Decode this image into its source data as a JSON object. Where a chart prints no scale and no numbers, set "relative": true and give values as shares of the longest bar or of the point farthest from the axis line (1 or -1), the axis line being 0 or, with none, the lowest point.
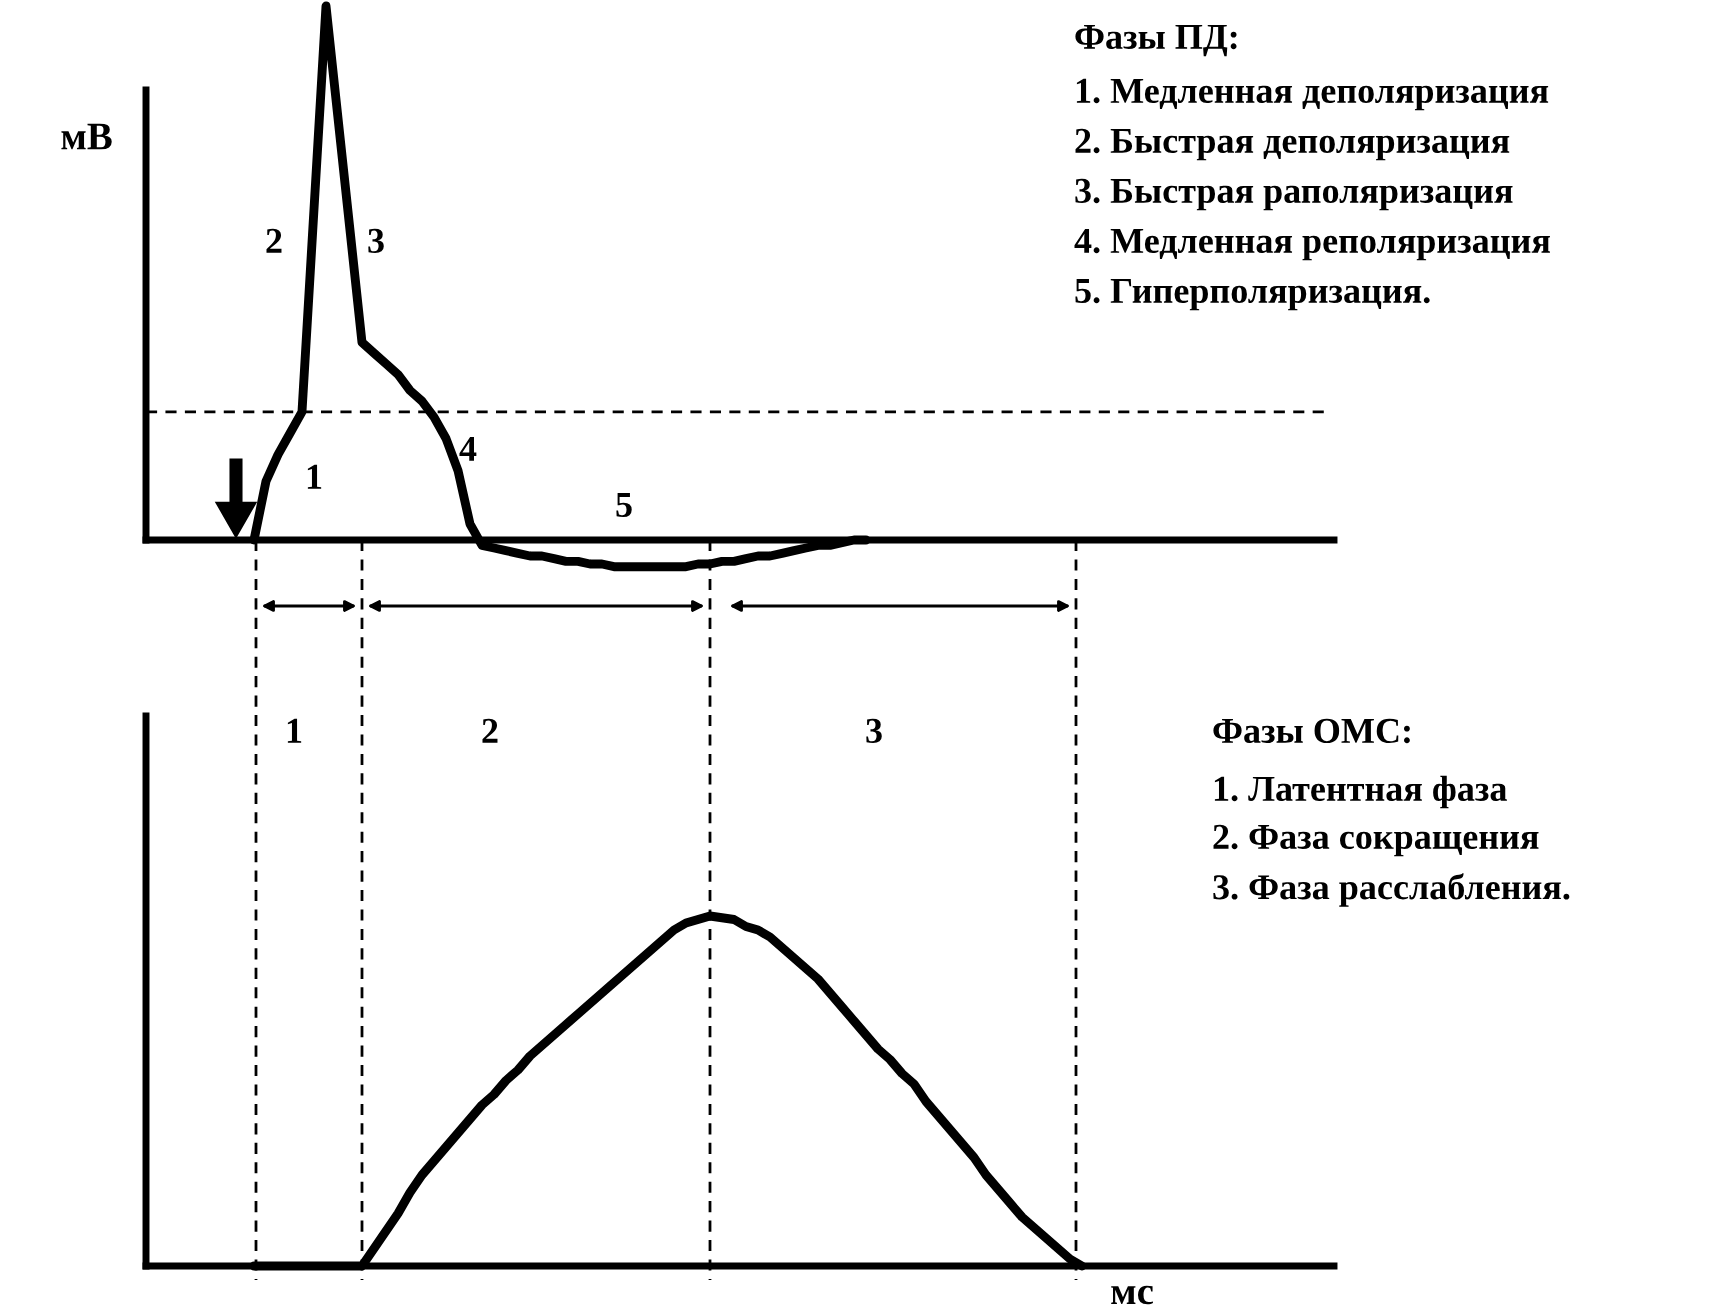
{
  "chart_data": [
    {
      "type": "line",
      "ylabel": "мВ",
      "relative": true,
      "categories": [
        null,
        null,
        null,
        null,
        null,
        null,
        null,
        null,
        null,
        null,
        null,
        null,
        null,
        null,
        null,
        null,
        null,
        null,
        null,
        null,
        null,
        null,
        null,
        null,
        null,
        null,
        null,
        null,
        null,
        null,
        null,
        null,
        null,
        null,
        null,
        null,
        null,
        null,
        null,
        null,
        null,
        null,
        null,
        null,
        null,
        null,
        null,
        null,
        null,
        null,
        null,
        null,
        null,
        null,
        null,
        null,
        null,
        null,
        null,
        null,
        null,
        null,
        null,
        null,
        null,
        null,
        null,
        null,
        null,
        null,
        null,
        null,
        null,
        null,
        null,
        null,
        null,
        null,
        null,
        null,
        null,
        null,
        null,
        null,
        null,
        null,
        null,
        null,
        null,
        null,
        null,
        null,
        null,
        null,
        null,
        null,
        null,
        null,
        null,
        null
      ],
      "series": [
        {
          "color": "#000000",
          "line_style": "solid",
          "values": [
            null,
            null,
            null,
            null,
            null,
            null,
            null,
            null,
            null,
            0,
            0.11,
            0.16,
            0.2,
            0.24,
            0.62,
            1,
            0.79,
            0.58,
            0.37,
            0.35,
            0.33,
            0.31,
            0.28,
            0.26,
            0.23,
            0.19,
            0.13,
            0.03,
            -0.01,
            -0.015,
            -0.02,
            -0.025,
            -0.03,
            -0.03,
            -0.035,
            -0.04,
            -0.04,
            -0.045,
            -0.045,
            -0.05,
            -0.05,
            -0.05,
            -0.05,
            -0.05,
            -0.05,
            -0.05,
            -0.045,
            -0.045,
            -0.04,
            -0.04,
            -0.035,
            -0.03,
            -0.03,
            -0.025,
            -0.02,
            -0.015,
            -0.01,
            -0.01,
            -0.005,
            0,
            0,
            null,
            null,
            null,
            null,
            null,
            null,
            null,
            null,
            null,
            null,
            null,
            null,
            null,
            null,
            null,
            null,
            null,
            null,
            null,
            null,
            null,
            null,
            null,
            null,
            null,
            null,
            null,
            null,
            null,
            null,
            null,
            null,
            null,
            null,
            null,
            null,
            null,
            null,
            null
          ]
        }
      ],
      "ref_lines": [
        {
          "axis": "y",
          "value": 0.24,
          "line_style": "dashed",
          "color": "#000000"
        }
      ],
      "annotations": [
        "1",
        "2",
        "3",
        "4",
        "5",
        "Фазы ПД:",
        "1. Медленная деполяризация",
        "2. Быстрая деполяризация",
        "3. Быстрая раполяризация",
        "4. Медленная реполяризация",
        "5. Гиперполяризация."
      ],
      "grid": false,
      "legend": false,
      "marker": "none"
    },
    {
      "type": "line",
      "xlabel": "мс",
      "relative": true,
      "categories": [
        null,
        null,
        null,
        null,
        null,
        null,
        null,
        null,
        null,
        null,
        null,
        null,
        null,
        null,
        null,
        null,
        null,
        null,
        null,
        null,
        null,
        null,
        null,
        null,
        null,
        null,
        null,
        null,
        null,
        null,
        null,
        null,
        null,
        null,
        null,
        null,
        null,
        null,
        null,
        null,
        null,
        null,
        null,
        null,
        null,
        null,
        null,
        null,
        null,
        null,
        null,
        null,
        null,
        null,
        null,
        null,
        null,
        null,
        null,
        null,
        null,
        null,
        null,
        null,
        null,
        null,
        null,
        null,
        null,
        null,
        null,
        null,
        null,
        null,
        null,
        null,
        null,
        null,
        null,
        null,
        null,
        null,
        null,
        null,
        null,
        null,
        null,
        null,
        null,
        null,
        null,
        null,
        null,
        null,
        null,
        null,
        null,
        null,
        null,
        null
      ],
      "series": [
        {
          "color": "#000000",
          "line_style": "solid",
          "values": [
            null,
            null,
            null,
            null,
            null,
            null,
            null,
            null,
            null,
            0,
            0,
            0,
            0,
            0,
            0,
            0,
            0,
            0,
            0,
            0.05,
            0.1,
            0.15,
            0.21,
            0.26,
            0.3,
            0.34,
            0.38,
            0.42,
            0.46,
            0.49,
            0.53,
            0.56,
            0.6,
            0.63,
            0.66,
            0.69,
            0.72,
            0.75,
            0.78,
            0.81,
            0.84,
            0.87,
            0.9,
            0.93,
            0.96,
            0.98,
            0.99,
            1,
            0.995,
            0.99,
            0.97,
            0.96,
            0.94,
            0.91,
            0.88,
            0.85,
            0.82,
            0.78,
            0.74,
            0.7,
            0.66,
            0.62,
            0.59,
            0.55,
            0.52,
            0.47,
            0.43,
            0.39,
            0.35,
            0.31,
            0.26,
            0.22,
            0.18,
            0.14,
            0.11,
            0.08,
            0.05,
            0.02,
            0,
            null,
            null,
            null,
            null,
            null,
            null,
            null,
            null,
            null,
            null,
            null,
            null,
            null,
            null,
            null,
            null,
            null,
            null,
            null,
            null,
            null
          ]
        }
      ],
      "annotations": [
        "1",
        "2",
        "3",
        "Фазы ОМС:",
        "1. Латентная фаза",
        "2. Фаза сокращения",
        "3. Фаза расслабления."
      ],
      "grid": false,
      "legend": false,
      "marker": "none"
    }
  ]
}
